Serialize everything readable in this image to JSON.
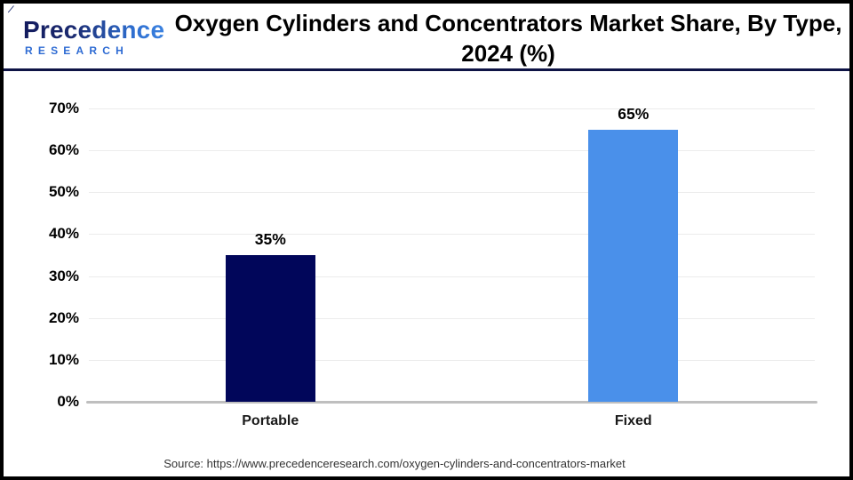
{
  "logo": {
    "name": "Precedence",
    "sub": "RESEARCH"
  },
  "header": {
    "title_line1": "Oxygen Cylinders and Concentrators Market Share, By Type,",
    "title_line2": "2024 (%)"
  },
  "footer": {
    "source_text": "Source: https://www.precedenceresearch.com/oxygen-cylinders-and-concentrators-market"
  },
  "colors": {
    "divider_navy": "#0e1345",
    "axis_line": "#bfbfbf",
    "gridline": "#ececec",
    "logo_blue": "#2e6bd3"
  },
  "chart_data": {
    "type": "bar",
    "title": "Oxygen Cylinders and Concentrators Market Share, By Type, 2024 (%)",
    "categories": [
      "Portable",
      "Fixed"
    ],
    "values": [
      35,
      65
    ],
    "value_labels": [
      "35%",
      "65%"
    ],
    "bar_colors": [
      "#01065a",
      "#4a90ea"
    ],
    "xlabel": "",
    "ylabel": "",
    "ylim": [
      0,
      70
    ],
    "yticks": [
      "0%",
      "10%",
      "20%",
      "30%",
      "40%",
      "50%",
      "60%",
      "70%"
    ],
    "grid": true,
    "legend": "none"
  }
}
